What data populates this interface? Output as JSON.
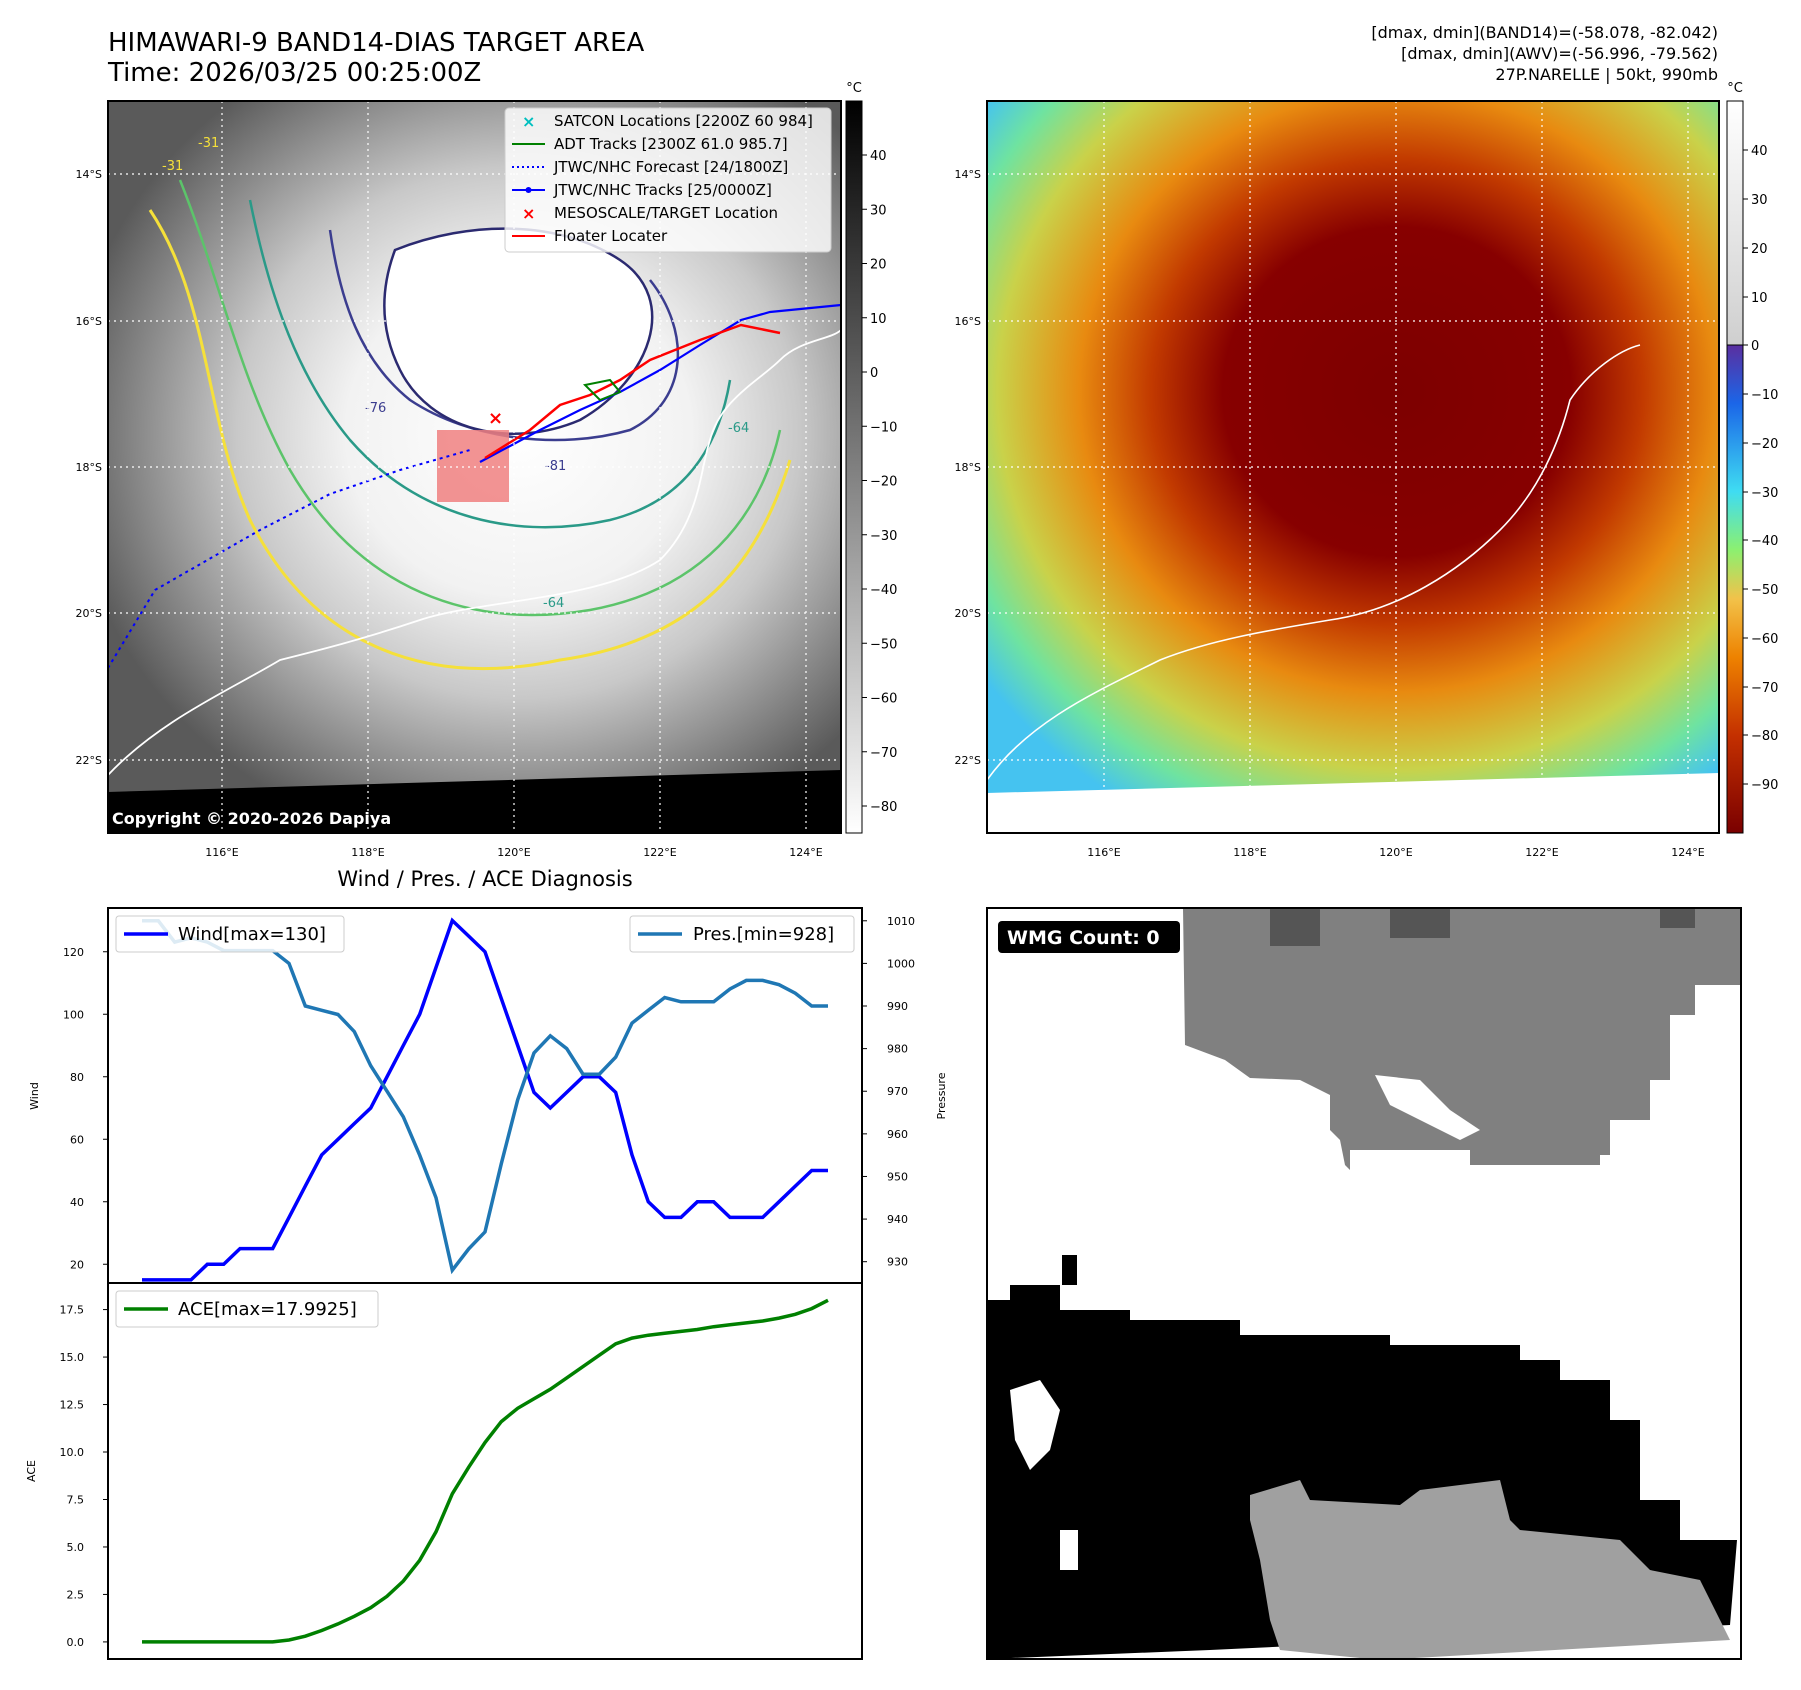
{
  "header": {
    "title_line1": "HIMAWARI-9 BAND14-DIAS TARGET AREA",
    "title_line2": "Time: 2026/03/25 00:25:00Z",
    "info_line1": "[dmax, dmin](BAND14)=(-58.078, -82.042)",
    "info_line2": "[dmax, dmin](AWV)=(-56.996, -79.562)",
    "info_line3": "27P.NARELLE | 50kt, 990mb"
  },
  "map_axes": {
    "lon_labels": [
      "116°E",
      "118°E",
      "120°E",
      "122°E",
      "124°E"
    ],
    "lat_labels": [
      "14°S",
      "16°S",
      "18°S",
      "20°S",
      "22°S"
    ]
  },
  "ir_panel": {
    "copyright": "Copyright © 2020-2026 Dapiya",
    "colorbar_unit": "°C",
    "colorbar_ticks": [
      "40",
      "30",
      "20",
      "10",
      "0",
      "−10",
      "−20",
      "−30",
      "−40",
      "−50",
      "−60",
      "−70",
      "−80"
    ],
    "contour_labels": [
      "-31",
      "-31",
      "-76",
      "-81",
      "-64",
      "-64"
    ],
    "legend": [
      {
        "label": "SATCON Locations [2200Z 60 984]",
        "color": "#00bfbf",
        "icon": "x-marker-icon"
      },
      {
        "label": "ADT Tracks [2300Z 61.0 985.7]",
        "color": "#008000",
        "icon": "solid-line-icon"
      },
      {
        "label": "JTWC/NHC Forecast [24/1800Z]",
        "color": "#0000ff",
        "icon": "dotted-line-icon"
      },
      {
        "label": "JTWC/NHC Tracks [25/0000Z]",
        "color": "#0000ff",
        "icon": "dot-line-icon"
      },
      {
        "label": "MESOSCALE/TARGET Location",
        "color": "#ff0000",
        "icon": "x-marker-icon"
      },
      {
        "label": "Floater Locater",
        "color": "#ff0000",
        "icon": "solid-line-icon"
      }
    ]
  },
  "awv_panel": {
    "colorbar_unit": "°C",
    "colorbar_ticks": [
      "40",
      "30",
      "20",
      "10",
      "0",
      "−10",
      "−20",
      "−30",
      "−40",
      "−50",
      "−60",
      "−70",
      "−80",
      "−90"
    ]
  },
  "wmg_panel": {
    "badge": "WMG Count: 0"
  },
  "chart_data": [
    {
      "type": "line",
      "title": "Wind / Pres. / ACE Diagnosis",
      "ylabel": "Wind",
      "y2label": "Pressure",
      "ylim": [
        14,
        134
      ],
      "y2lim": [
        925,
        1013
      ],
      "yticks": [
        20,
        40,
        60,
        80,
        100,
        120
      ],
      "y2ticks": [
        930,
        940,
        950,
        960,
        970,
        980,
        990,
        1000,
        1010
      ],
      "series": [
        {
          "name": "Wind[max=130]",
          "axis": "left",
          "color": "#0000ff",
          "values": [
            15,
            15,
            15,
            15,
            20,
            20,
            25,
            25,
            25,
            35,
            45,
            55,
            60,
            65,
            70,
            80,
            90,
            100,
            115,
            130,
            125,
            120,
            105,
            90,
            75,
            70,
            75,
            80,
            80,
            75,
            55,
            40,
            35,
            35,
            40,
            40,
            35,
            35,
            35,
            40,
            45,
            50,
            50
          ]
        },
        {
          "name": "Pres.[min=928]",
          "axis": "right",
          "color": "#1f77b4",
          "values": [
            1010,
            1010,
            1005,
            1006,
            1005,
            1003,
            1003,
            1003,
            1003,
            1000,
            990,
            989,
            988,
            984,
            976,
            970,
            964,
            955,
            945,
            928,
            933,
            937,
            953,
            968,
            979,
            983,
            980,
            974,
            974,
            978,
            986,
            989,
            992,
            991,
            991,
            991,
            994,
            996,
            996,
            995,
            993,
            990,
            990
          ]
        }
      ]
    },
    {
      "type": "line",
      "ylabel": "ACE",
      "ylim": [
        -0.9,
        18.9
      ],
      "yticks": [
        "0.0",
        "2.5",
        "5.0",
        "7.5",
        "10.0",
        "12.5",
        "15.0",
        "17.5"
      ],
      "series": [
        {
          "name": "ACE[max=17.9925]",
          "color": "#008000",
          "values": [
            0,
            0,
            0,
            0,
            0,
            0,
            0,
            0,
            0,
            0.1,
            0.3,
            0.6,
            0.95,
            1.35,
            1.8,
            2.4,
            3.2,
            4.3,
            5.8,
            7.8,
            9.2,
            10.5,
            11.6,
            12.3,
            12.8,
            13.3,
            13.9,
            14.5,
            15.1,
            15.7,
            16.0,
            16.15,
            16.25,
            16.35,
            16.45,
            16.6,
            16.7,
            16.8,
            16.9,
            17.05,
            17.25,
            17.55,
            17.99
          ]
        }
      ]
    }
  ]
}
